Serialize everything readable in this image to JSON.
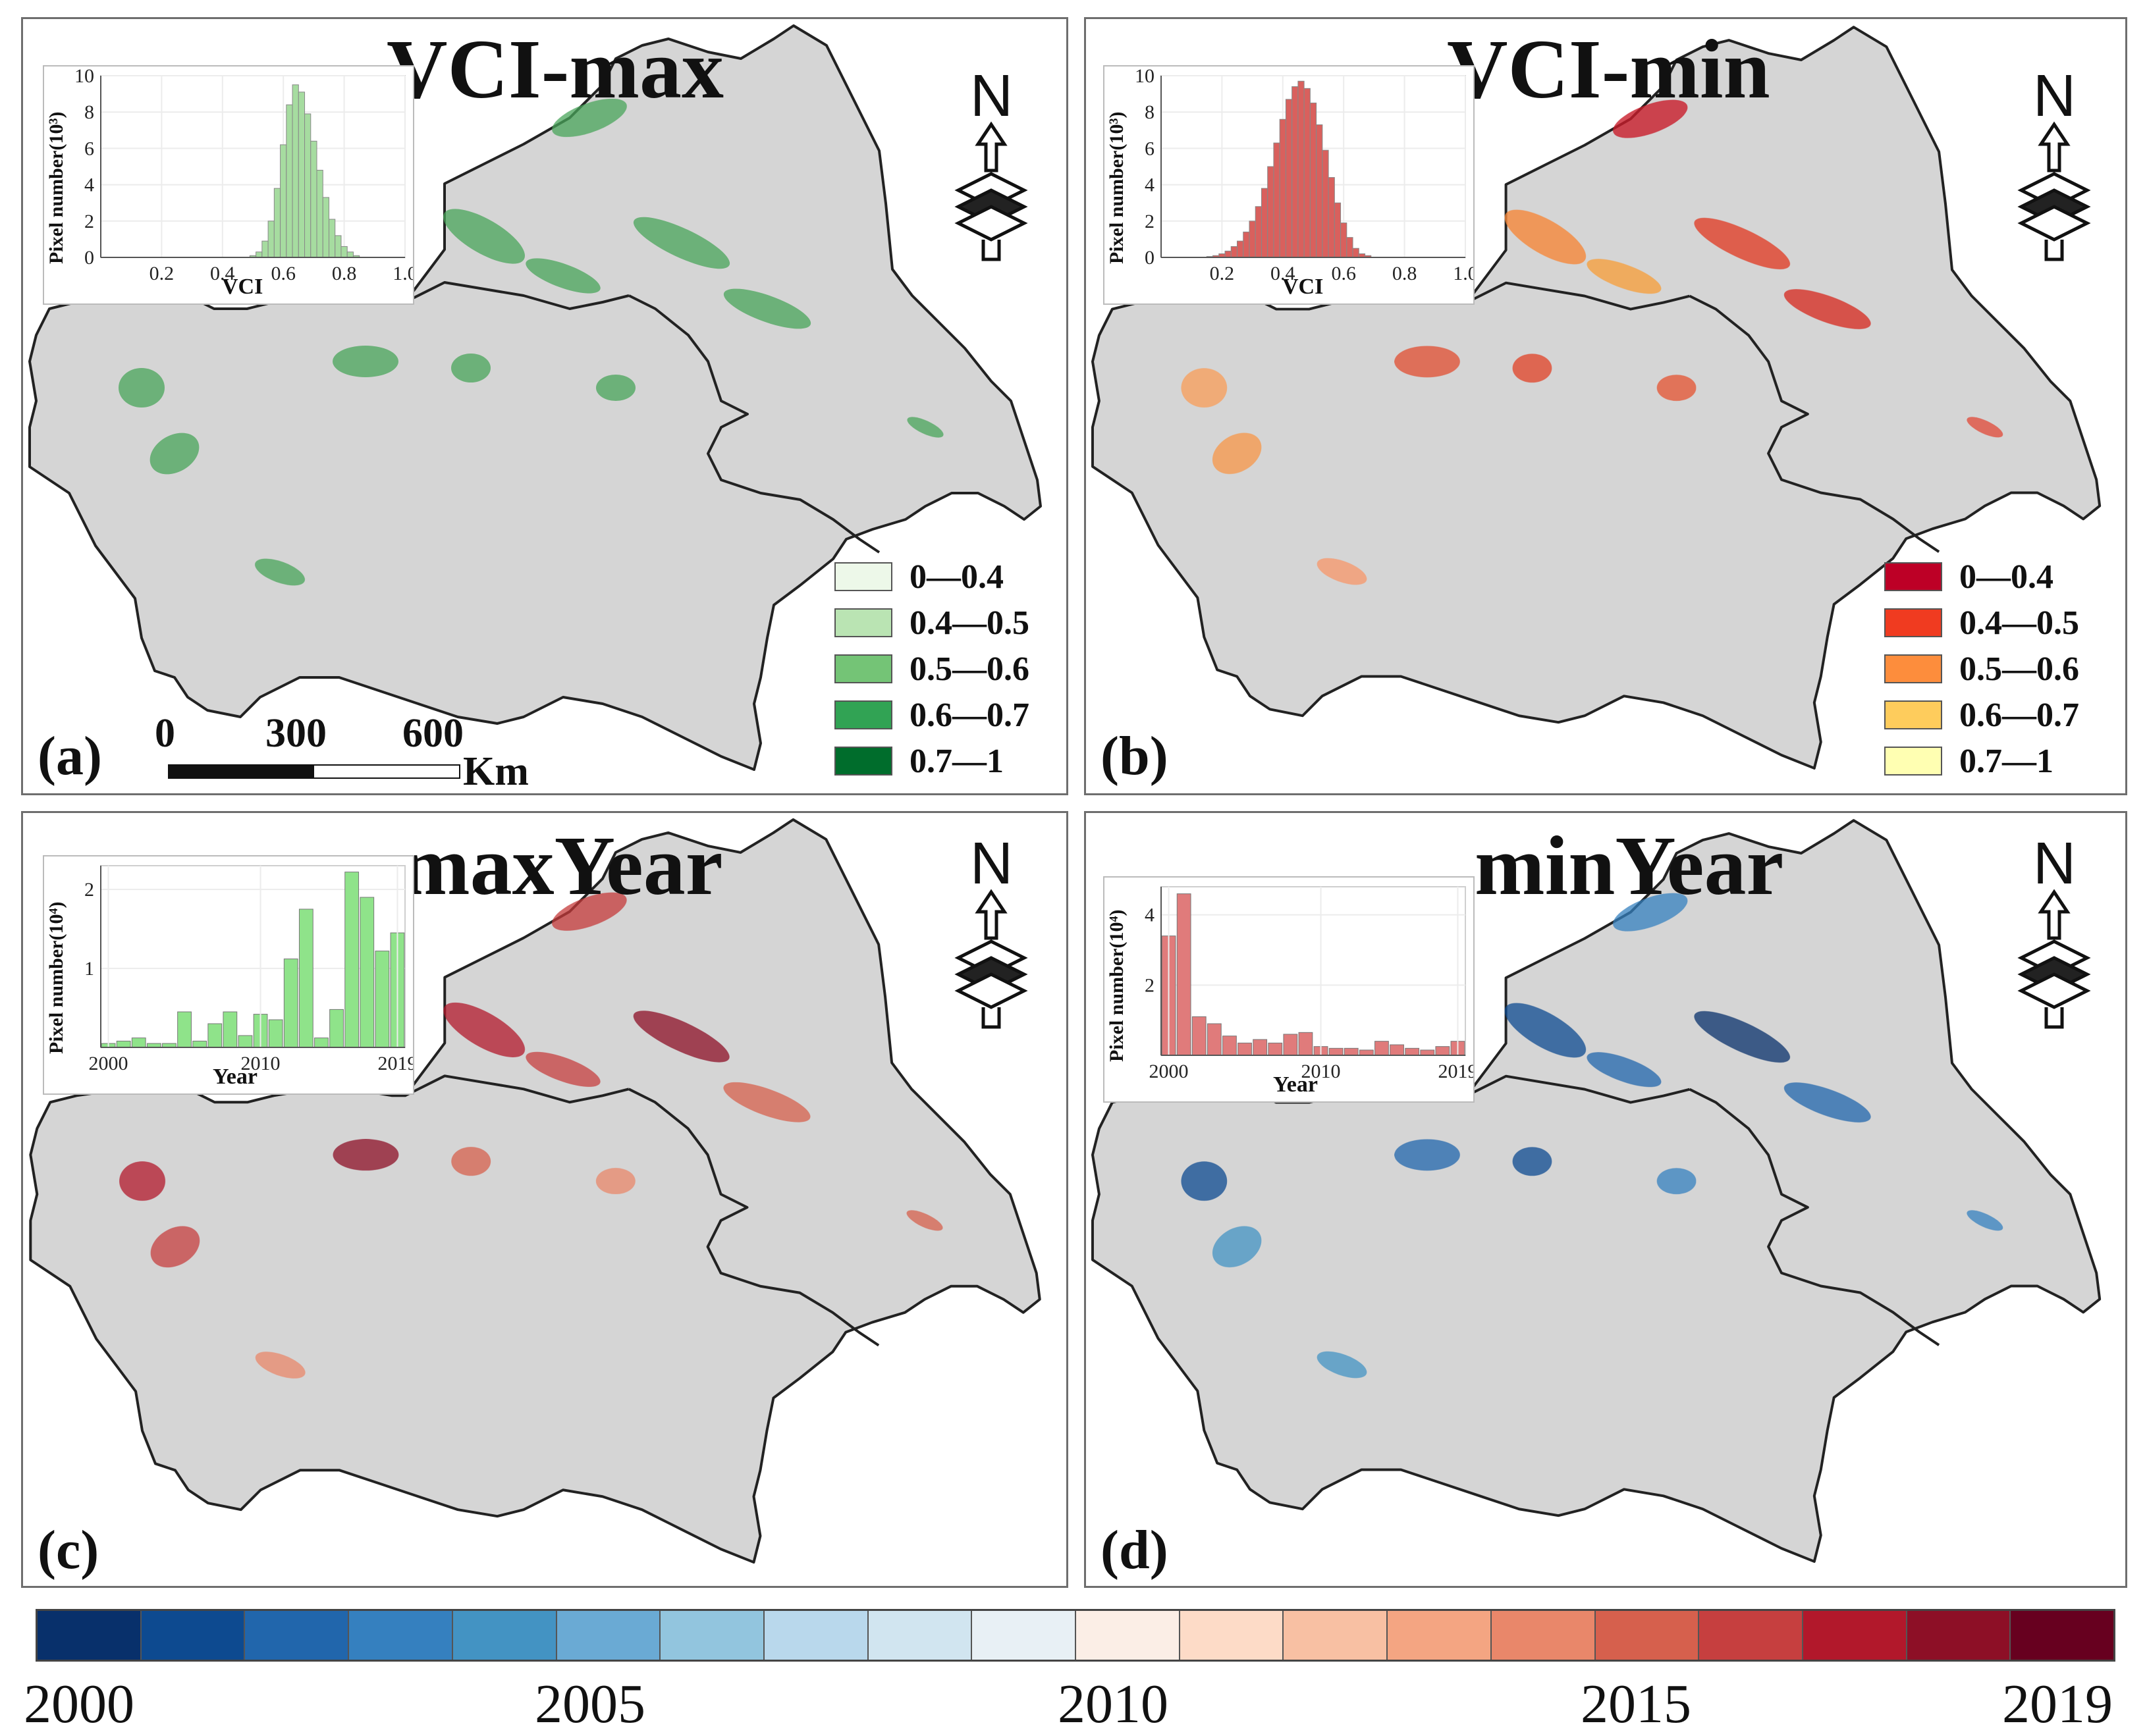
{
  "panels": {
    "a": {
      "label": "(a)",
      "title": "VCI-max"
    },
    "b": {
      "label": "(b)",
      "title": "VCI-min"
    },
    "c": {
      "label": "(c)",
      "title": "maxYear"
    },
    "d": {
      "label": "(d)",
      "title": "minYear"
    }
  },
  "north_arrow": {
    "letter": "N"
  },
  "scale_bar": {
    "ticks": [
      "0",
      "300",
      "600"
    ],
    "unit": "Km"
  },
  "legend_ranges": [
    "0—0.4",
    "0.4—0.5",
    "0.5—0.6",
    "0.6—0.7",
    "0.7—1"
  ],
  "legend_a_colors": [
    "#edf8e9",
    "#bae4b3",
    "#74c476",
    "#31a354",
    "#006d2c"
  ],
  "legend_b_colors": [
    "#bd0026",
    "#f03b20",
    "#fd8d3c",
    "#fecc5c",
    "#ffffb2"
  ],
  "colorbar": {
    "labels": [
      "2000",
      "2005",
      "2010",
      "2015",
      "2019"
    ],
    "colors": [
      "#08306b",
      "#0d4a90",
      "#2166ac",
      "#3580bf",
      "#4393c3",
      "#6aaad4",
      "#92c5de",
      "#b9d8ec",
      "#d1e5f0",
      "#e8f0f5",
      "#fbeee6",
      "#fddbc7",
      "#f8c0a3",
      "#f4a582",
      "#e9876a",
      "#d6604d",
      "#c63f3f",
      "#b2182b",
      "#8d0f26",
      "#67001f"
    ]
  },
  "chart_data": [
    {
      "type": "bar",
      "panel": "a",
      "title": "",
      "xlabel": "VCI",
      "ylabel": "Pixel number(10³)",
      "xlim": [
        0,
        1
      ],
      "ylim": [
        0,
        10
      ],
      "xticks": [
        "0.2",
        "0.4",
        "0.6",
        "0.8",
        "1.0"
      ],
      "yticks": [
        "0",
        "2",
        "4",
        "6",
        "8",
        "10"
      ],
      "bar_color": "#a6dca0",
      "x": [
        0.5,
        0.52,
        0.54,
        0.56,
        0.58,
        0.6,
        0.62,
        0.64,
        0.66,
        0.68,
        0.7,
        0.72,
        0.74,
        0.76,
        0.78,
        0.8,
        0.82,
        0.84
      ],
      "values": [
        0.1,
        0.3,
        0.9,
        2.0,
        3.8,
        6.2,
        8.4,
        9.5,
        9.1,
        7.9,
        6.4,
        4.8,
        3.3,
        2.1,
        1.2,
        0.6,
        0.3,
        0.1
      ]
    },
    {
      "type": "bar",
      "panel": "b",
      "title": "",
      "xlabel": "VCI",
      "ylabel": "Pixel number(10³)",
      "xlim": [
        0,
        1
      ],
      "ylim": [
        0,
        10
      ],
      "xticks": [
        "0.2",
        "0.4",
        "0.6",
        "0.8",
        "1.0"
      ],
      "yticks": [
        "0",
        "2",
        "4",
        "6",
        "8",
        "10"
      ],
      "bar_color": "#d9605d",
      "x": [
        0.16,
        0.18,
        0.2,
        0.22,
        0.24,
        0.26,
        0.28,
        0.3,
        0.32,
        0.34,
        0.36,
        0.38,
        0.4,
        0.42,
        0.44,
        0.46,
        0.48,
        0.5,
        0.52,
        0.54,
        0.56,
        0.58,
        0.6,
        0.62,
        0.64,
        0.66,
        0.68
      ],
      "values": [
        0.05,
        0.1,
        0.2,
        0.35,
        0.6,
        0.9,
        1.4,
        2.0,
        2.8,
        3.8,
        5.0,
        6.3,
        7.6,
        8.7,
        9.4,
        9.7,
        9.3,
        8.5,
        7.3,
        5.9,
        4.4,
        3.0,
        1.9,
        1.1,
        0.5,
        0.2,
        0.1
      ]
    },
    {
      "type": "bar",
      "panel": "c",
      "title": "",
      "xlabel": "Year",
      "ylabel": "Pixel number(10⁴)",
      "ylim": [
        0,
        2.3
      ],
      "xticks": [
        "2000",
        "2010",
        "2019"
      ],
      "yticks": [
        "1",
        "2"
      ],
      "bar_color": "#8fe38a",
      "categories": [
        "2000",
        "2001",
        "2002",
        "2003",
        "2004",
        "2005",
        "2006",
        "2007",
        "2008",
        "2009",
        "2010",
        "2011",
        "2012",
        "2013",
        "2014",
        "2015",
        "2016",
        "2017",
        "2018",
        "2019"
      ],
      "values": [
        0.05,
        0.08,
        0.12,
        0.05,
        0.05,
        0.45,
        0.08,
        0.3,
        0.45,
        0.15,
        0.42,
        0.35,
        1.12,
        1.75,
        0.12,
        0.48,
        2.22,
        1.9,
        1.22,
        1.45
      ]
    },
    {
      "type": "bar",
      "panel": "d",
      "title": "",
      "xlabel": "Year",
      "ylabel": "Pixel number(10⁴)",
      "ylim": [
        0,
        4.8
      ],
      "xticks": [
        "2000",
        "2010",
        "2019"
      ],
      "yticks": [
        "2",
        "4"
      ],
      "bar_color": "#e07b7b",
      "categories": [
        "2000",
        "2001",
        "2002",
        "2003",
        "2004",
        "2005",
        "2006",
        "2007",
        "2008",
        "2009",
        "2010",
        "2011",
        "2012",
        "2013",
        "2014",
        "2015",
        "2016",
        "2017",
        "2018",
        "2019"
      ],
      "values": [
        3.4,
        4.6,
        1.1,
        0.9,
        0.55,
        0.35,
        0.45,
        0.35,
        0.6,
        0.65,
        0.25,
        0.2,
        0.2,
        0.15,
        0.4,
        0.3,
        0.2,
        0.15,
        0.25,
        0.4
      ]
    }
  ]
}
